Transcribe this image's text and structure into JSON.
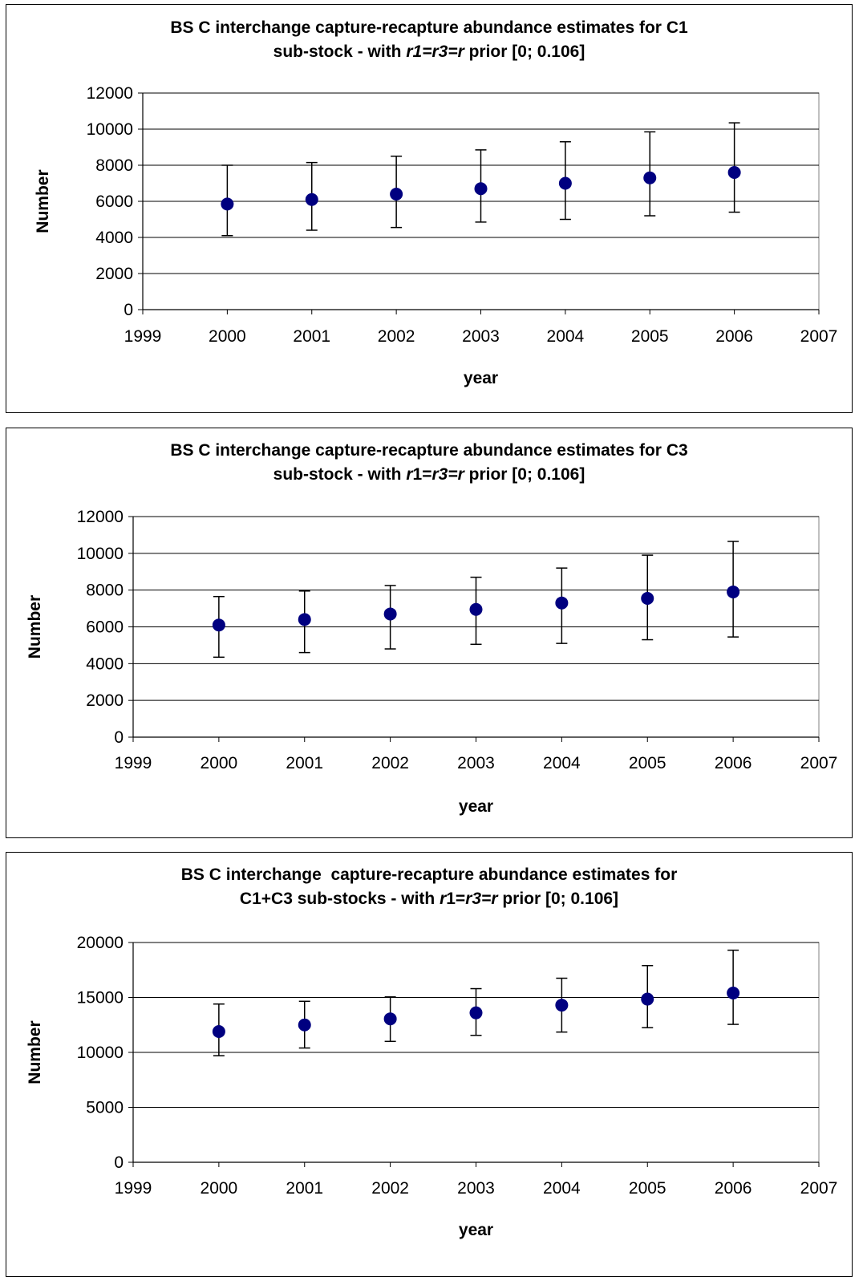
{
  "chart_data": [
    {
      "type": "scatter",
      "title_line1": "BS C interchange capture-recapture abundance estimates for C1",
      "title_line2_pre": "sub-stock - with ",
      "title_line2_italic": "r1=r3=r",
      "title_line2_post": " prior [0; 0.106]",
      "xlabel": "year",
      "ylabel": "Number",
      "xlim": [
        1999,
        2007
      ],
      "xticks": [
        1999,
        2000,
        2001,
        2002,
        2003,
        2004,
        2005,
        2006,
        2007
      ],
      "ylim": [
        0,
        12000
      ],
      "yticks": [
        0,
        2000,
        4000,
        6000,
        8000,
        10000,
        12000
      ],
      "grid": "horizontal",
      "marker_color": "#000080",
      "points": [
        {
          "x": 2000,
          "y": 5850,
          "low": 4100,
          "high": 8000
        },
        {
          "x": 2001,
          "y": 6100,
          "low": 4400,
          "high": 8150
        },
        {
          "x": 2002,
          "y": 6400,
          "low": 4550,
          "high": 8500
        },
        {
          "x": 2003,
          "y": 6700,
          "low": 4850,
          "high": 8850
        },
        {
          "x": 2004,
          "y": 7000,
          "low": 5000,
          "high": 9300
        },
        {
          "x": 2005,
          "y": 7300,
          "low": 5200,
          "high": 9850
        },
        {
          "x": 2006,
          "y": 7600,
          "low": 5400,
          "high": 10350
        }
      ]
    },
    {
      "type": "scatter",
      "title_line1": "BS C interchange capture-recapture abundance estimates for C3",
      "title_line2_pre": "sub-stock - with ",
      "title_line2_italic": "r",
      "title_line2_mid": "1=",
      "title_line2_italic2": "r3=r",
      "title_line2_post": " prior [0; 0.106]",
      "xlabel": "year",
      "ylabel": "Number",
      "xlim": [
        1999,
        2007
      ],
      "xticks": [
        1999,
        2000,
        2001,
        2002,
        2003,
        2004,
        2005,
        2006,
        2007
      ],
      "ylim": [
        0,
        12000
      ],
      "yticks": [
        0,
        2000,
        4000,
        6000,
        8000,
        10000,
        12000
      ],
      "grid": "horizontal",
      "marker_color": "#000080",
      "points": [
        {
          "x": 2000,
          "y": 6100,
          "low": 4350,
          "high": 7650
        },
        {
          "x": 2001,
          "y": 6400,
          "low": 4600,
          "high": 7950
        },
        {
          "x": 2002,
          "y": 6700,
          "low": 4800,
          "high": 8250
        },
        {
          "x": 2003,
          "y": 6950,
          "low": 5050,
          "high": 8700
        },
        {
          "x": 2004,
          "y": 7300,
          "low": 5100,
          "high": 9200
        },
        {
          "x": 2005,
          "y": 7550,
          "low": 5300,
          "high": 9900
        },
        {
          "x": 2006,
          "y": 7900,
          "low": 5450,
          "high": 10650
        }
      ]
    },
    {
      "type": "scatter",
      "title_line1": "BS C interchange  capture-recapture abundance estimates for",
      "title_line2_pre": "C1+C3 sub-stocks - with ",
      "title_line2_italic": "r",
      "title_line2_mid": "1=",
      "title_line2_italic2": "r3=r",
      "title_line2_post": " prior [0; 0.106]",
      "xlabel": "year",
      "ylabel": "Number",
      "xlim": [
        1999,
        2007
      ],
      "xticks": [
        1999,
        2000,
        2001,
        2002,
        2003,
        2004,
        2005,
        2006,
        2007
      ],
      "ylim": [
        0,
        20000
      ],
      "yticks": [
        0,
        5000,
        10000,
        15000,
        20000
      ],
      "grid": "horizontal",
      "marker_color": "#000080",
      "points": [
        {
          "x": 2000,
          "y": 11900,
          "low": 9700,
          "high": 14400
        },
        {
          "x": 2001,
          "y": 12500,
          "low": 10400,
          "high": 14650
        },
        {
          "x": 2002,
          "y": 13050,
          "low": 11000,
          "high": 15050
        },
        {
          "x": 2003,
          "y": 13600,
          "low": 11550,
          "high": 15800
        },
        {
          "x": 2004,
          "y": 14300,
          "low": 11850,
          "high": 16750
        },
        {
          "x": 2005,
          "y": 14850,
          "low": 12250,
          "high": 17900
        },
        {
          "x": 2006,
          "y": 15400,
          "low": 12550,
          "high": 19300
        }
      ]
    }
  ]
}
